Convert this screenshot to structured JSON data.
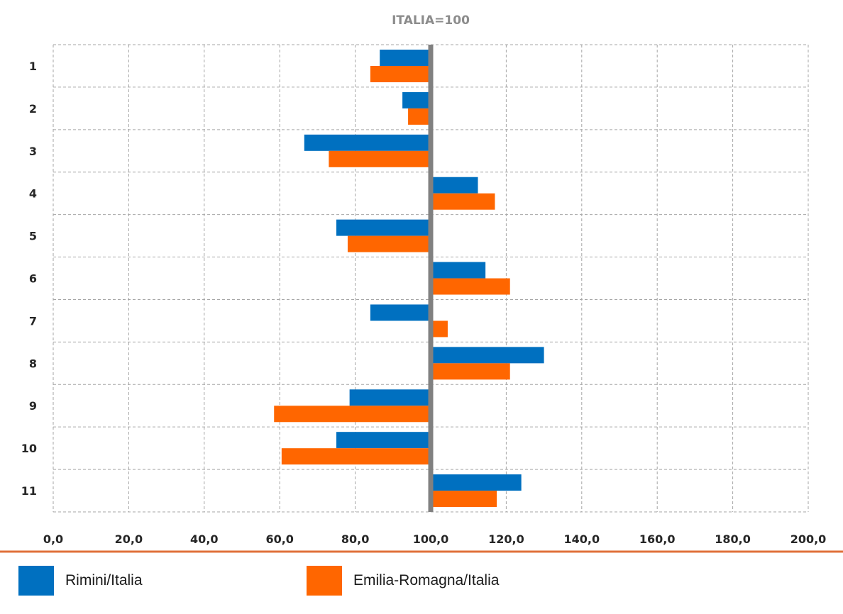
{
  "chart_data": {
    "type": "bar",
    "orientation": "horizontal",
    "title": "ITALIA=100",
    "categories": [
      "1",
      "2",
      "3",
      "4",
      "5",
      "6",
      "7",
      "8",
      "9",
      "10",
      "11"
    ],
    "series": [
      {
        "name": "Rimini/Italia",
        "color": "#0070C0",
        "values": [
          86.5,
          92.5,
          66.5,
          112.5,
          75.0,
          114.5,
          84.0,
          130.0,
          78.5,
          75.0,
          124.0
        ]
      },
      {
        "name": "Emilia-Romagna/Italia",
        "color": "#FF6600",
        "values": [
          84.0,
          94.0,
          73.0,
          117.0,
          78.0,
          121.0,
          104.5,
          121.0,
          58.5,
          60.5,
          117.5
        ]
      }
    ],
    "xlim": [
      0,
      200
    ],
    "x_ticks": [
      "0,0",
      "20,0",
      "40,0",
      "60,0",
      "80,0",
      "100,0",
      "120,0",
      "140,0",
      "160,0",
      "180,0",
      "200,0"
    ],
    "baseline": 100,
    "grid": true,
    "legend_position": "bottom"
  }
}
